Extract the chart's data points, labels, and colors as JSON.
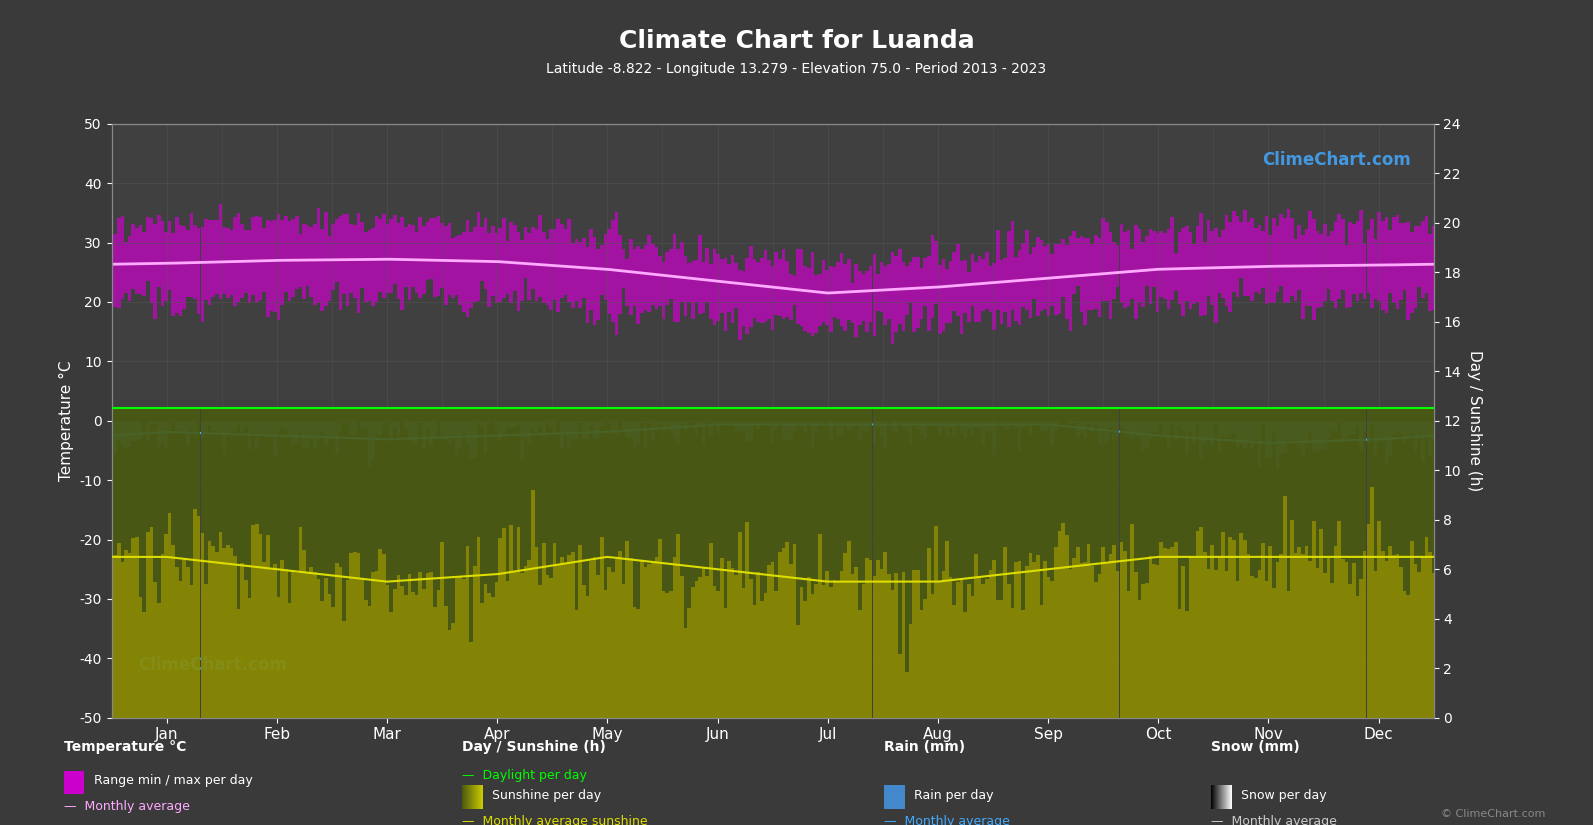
{
  "title": "Climate Chart for Luanda",
  "subtitle": "Latitude -8.822 - Longitude 13.279 - Elevation 75.0 - Period 2013 - 2023",
  "bg_color": "#3a3a3a",
  "plot_bg_color": "#404040",
  "grid_color": "#555555",
  "text_color": "#ffffff",
  "months": [
    "Jan",
    "Feb",
    "Mar",
    "Apr",
    "May",
    "Jun",
    "Jul",
    "Aug",
    "Sep",
    "Oct",
    "Nov",
    "Dec"
  ],
  "temp_ylim": [
    -50,
    50
  ],
  "sunshine_ylim": [
    0,
    24
  ],
  "temp_avg": [
    26.5,
    27.0,
    27.2,
    26.8,
    25.5,
    23.5,
    21.5,
    22.5,
    24.0,
    25.5,
    26.0,
    26.2
  ],
  "temp_max_abs": [
    33.0,
    33.5,
    33.8,
    33.0,
    31.0,
    27.5,
    26.0,
    27.5,
    30.0,
    32.0,
    33.0,
    33.0
  ],
  "temp_min_abs": [
    20.0,
    20.5,
    21.0,
    20.5,
    19.0,
    17.5,
    16.0,
    17.0,
    18.5,
    20.0,
    20.5,
    20.5
  ],
  "daylight": [
    12.5,
    12.5,
    12.5,
    12.5,
    12.5,
    12.5,
    12.5,
    12.5,
    12.5,
    12.5,
    12.5,
    12.5
  ],
  "sunshine_per_day": [
    6.5,
    6.0,
    5.5,
    5.8,
    6.5,
    6.0,
    5.5,
    5.5,
    6.0,
    6.5,
    6.5,
    6.5
  ],
  "rain_monthly_avg_mm": [
    1.5,
    2.0,
    2.5,
    2.0,
    1.5,
    0.5,
    0.5,
    0.5,
    0.5,
    2.0,
    3.0,
    2.5
  ],
  "rain_per_day": [
    1.5,
    2.0,
    2.5,
    2.0,
    1.5,
    0.5,
    0.5,
    0.5,
    0.5,
    2.0,
    3.0,
    2.5
  ],
  "colors": {
    "temp_range_fill": "#cc00cc",
    "temp_avg_line": "#ffaaff",
    "daylight_fill": "#4a5a10",
    "sunshine_fill": "#8b8b00",
    "daylight_line": "#00ff00",
    "sunshine_avg_line": "#dddd00",
    "rain_fill": "#4488cc",
    "rain_avg_line": "#44aaff",
    "snow_fill": "#aaaaaa",
    "snow_avg_line": "#cccccc"
  }
}
